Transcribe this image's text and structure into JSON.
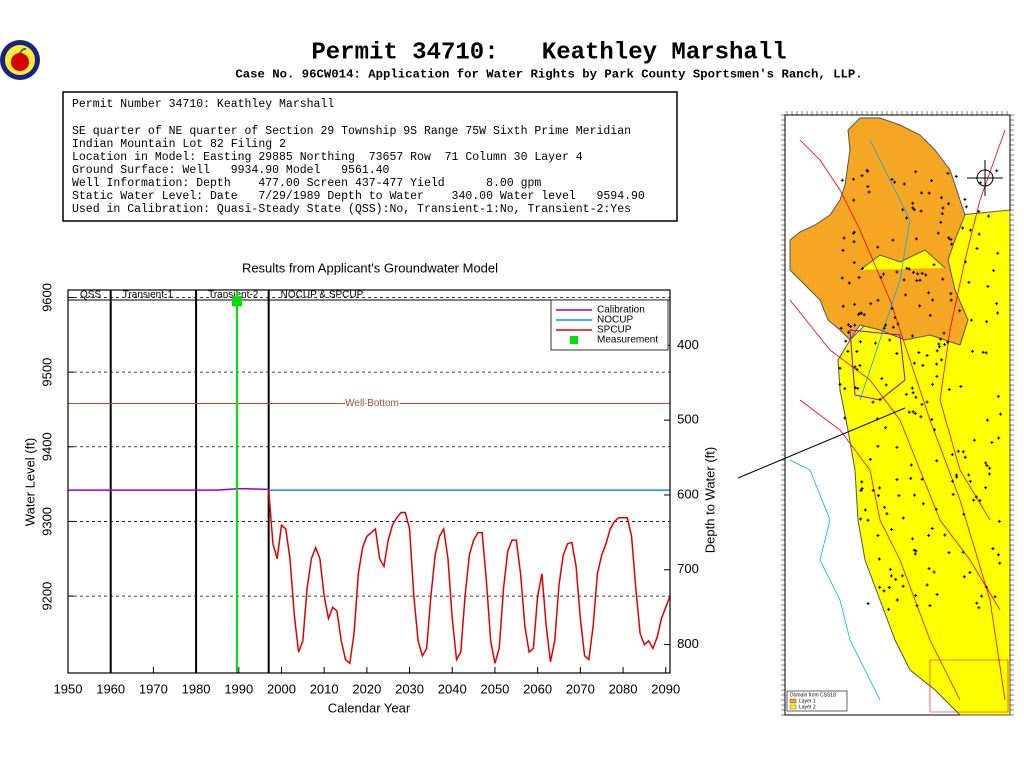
{
  "header": {
    "title": "Permit 34710:   Keathley Marshall",
    "subtitle": "Case No. 96CW014: Application for Water Rights by Park County Sportsmen's Ranch, LLP."
  },
  "info": {
    "lines": [
      "Permit Number 34710: Keathley Marshall",
      "SE quarter of NE quarter of Section 29 Township 9S Range 75W Sixth Prime Meridian",
      "Indian Mountain Lot 82 Filing 2",
      "Location in Model: Easting 29885 Northing  73657 Row  71 Column 30 Layer 4",
      "Ground Surface: Well   9934.90 Model   9561.40",
      "Well Information: Depth    477.00 Screen 437-477 Yield      8.00 gpm",
      "Static Water Level: Date   7/29/1989 Depth to Water    340.00 Water level   9594.90",
      "Used in Calibration: Quasi-Steady State (QSS):No, Transient-1:No, Transient-2:Yes"
    ]
  },
  "map": {
    "legend_title": "Domain from CSS18",
    "layers": [
      "Layer 1",
      "Layer 2"
    ]
  },
  "chart_data": {
    "type": "line",
    "title": "Results from Applicant's Groundwater Model",
    "x_label": "Calendar Year",
    "y_label": "Water Level (ft)",
    "y2_label": "Depth to Water (ft)",
    "xlim": [
      1950,
      2091
    ],
    "xticks": [
      1950,
      1960,
      1970,
      1980,
      1990,
      2000,
      2010,
      2020,
      2030,
      2040,
      2050,
      2060,
      2070,
      2080,
      2090
    ],
    "ylim": [
      9097,
      9610
    ],
    "yticks": [
      9200,
      9300,
      9400,
      9500,
      9600
    ],
    "y2lim": [
      838,
      326
    ],
    "y2ticks": [
      400,
      500,
      600,
      700,
      800
    ],
    "grid": true,
    "phases": [
      {
        "label": "QSS",
        "start": 1950
      },
      {
        "label": "Transient-1",
        "start": 1960
      },
      {
        "label": "Transient-2",
        "start": 1980
      },
      {
        "label": "NOCUP & SPCUP",
        "start": 1997
      }
    ],
    "annotations": [
      {
        "label": "Well Bottom",
        "value": 9457.9,
        "color": "#a0522d"
      }
    ],
    "series": [
      {
        "name": "Calibration",
        "color": "#9400d3",
        "x": [
          1950,
          1985,
          1990,
          1997
        ],
        "values": [
          9342,
          9342,
          9344,
          9343
        ]
      },
      {
        "name": "NOCUP",
        "color": "#0099cc",
        "x": [
          1997,
          2091
        ],
        "values": [
          9342,
          9342
        ]
      },
      {
        "name": "SPCUP",
        "color": "#e00000",
        "x": [
          1997,
          1998,
          1999,
          2000,
          2001,
          2002,
          2003,
          2004,
          2005,
          2006,
          2007,
          2008,
          2009,
          2010,
          2011,
          2012,
          2013,
          2014,
          2015,
          2016,
          2017,
          2018,
          2019,
          2020,
          2021,
          2022,
          2023,
          2024,
          2025,
          2026,
          2027,
          2028,
          2029,
          2030,
          2031,
          2032,
          2033,
          2034,
          2035,
          2036,
          2037,
          2038,
          2039,
          2040,
          2041,
          2042,
          2043,
          2044,
          2045,
          2046,
          2047,
          2048,
          2049,
          2050,
          2051,
          2052,
          2053,
          2054,
          2055,
          2056,
          2057,
          2058,
          2059,
          2060,
          2061,
          2062,
          2063,
          2064,
          2065,
          2066,
          2067,
          2068,
          2069,
          2070,
          2071,
          2072,
          2073,
          2074,
          2075,
          2076,
          2077,
          2078,
          2079,
          2080,
          2081,
          2082,
          2083,
          2084,
          2085,
          2086,
          2087,
          2088,
          2089,
          2090,
          2091
        ],
        "values": [
          9342,
          9270,
          9250,
          9295,
          9290,
          9250,
          9175,
          9125,
          9140,
          9210,
          9250,
          9265,
          9250,
          9200,
          9170,
          9185,
          9180,
          9140,
          9115,
          9110,
          9150,
          9230,
          9265,
          9280,
          9285,
          9290,
          9250,
          9240,
          9275,
          9295,
          9305,
          9312,
          9312,
          9290,
          9200,
          9140,
          9120,
          9130,
          9200,
          9255,
          9280,
          9290,
          9250,
          9170,
          9115,
          9125,
          9200,
          9255,
          9275,
          9285,
          9285,
          9220,
          9140,
          9110,
          9130,
          9210,
          9260,
          9275,
          9275,
          9230,
          9160,
          9125,
          9130,
          9200,
          9230,
          9160,
          9112,
          9140,
          9215,
          9255,
          9270,
          9272,
          9240,
          9170,
          9120,
          9115,
          9160,
          9230,
          9255,
          9270,
          9290,
          9300,
          9305,
          9305,
          9305,
          9280,
          9210,
          9150,
          9135,
          9140,
          9130,
          9145,
          9170,
          9185,
          9200
        ]
      },
      {
        "name": "Measurement",
        "color": "#00e000",
        "style": "marker",
        "x": [
          1989.57
        ],
        "values": [
          9594.9
        ]
      }
    ]
  }
}
